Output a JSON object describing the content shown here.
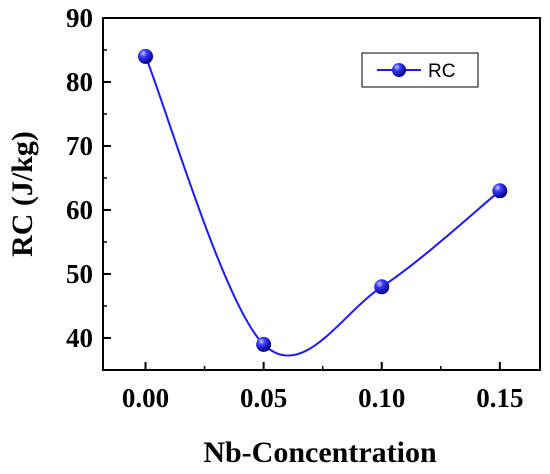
{
  "chart_data": {
    "type": "line",
    "xlabel": "Nb-Concentration",
    "ylabel": "RC (J/kg)",
    "x": [
      0.0,
      0.05,
      0.1,
      0.15
    ],
    "x_tick_labels": [
      "0.00",
      "0.05",
      "0.10",
      "0.15"
    ],
    "y_ticks": [
      40,
      50,
      60,
      70,
      80,
      90
    ],
    "y_tick_labels": [
      "40",
      "50",
      "60",
      "70",
      "80",
      "90"
    ],
    "xlim": [
      -0.018,
      0.167
    ],
    "ylim": [
      35,
      90
    ],
    "grid": false,
    "legend_position": "top-right",
    "line_style": "smooth spline through points",
    "series": [
      {
        "name": "RC",
        "values": [
          84,
          39,
          48,
          63
        ],
        "color": "#1a1aff",
        "marker": "sphere"
      }
    ]
  }
}
